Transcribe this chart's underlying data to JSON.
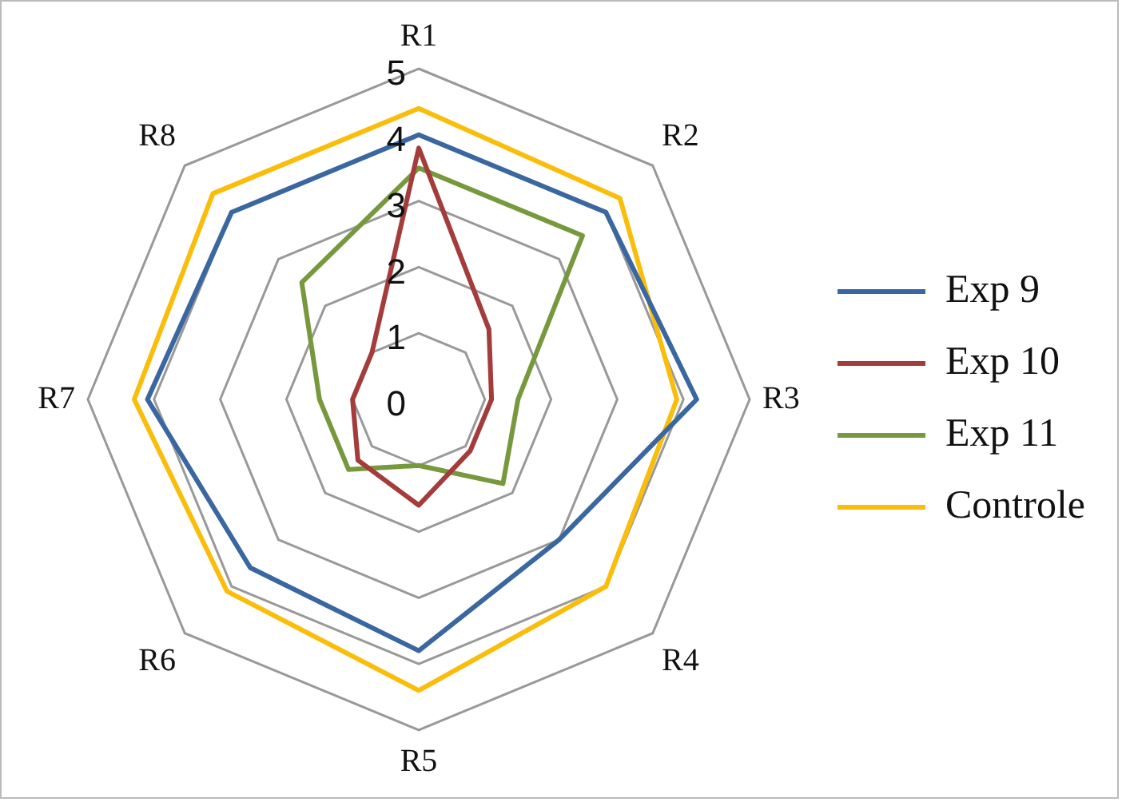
{
  "chart_data": {
    "type": "radar",
    "categories": [
      "R1",
      "R2",
      "R3",
      "R4",
      "R5",
      "R6",
      "R7",
      "R8"
    ],
    "series": [
      {
        "name": "Exp 9",
        "color": "#3a67a0",
        "values": [
          4.0,
          4.0,
          4.2,
          3.0,
          3.8,
          3.6,
          4.1,
          4.0
        ]
      },
      {
        "name": "Exp 10",
        "color": "#a33c3a",
        "values": [
          3.8,
          1.5,
          1.1,
          1.1,
          1.6,
          1.3,
          1.0,
          1.0
        ]
      },
      {
        "name": "Exp 11",
        "color": "#77993d",
        "values": [
          3.5,
          3.5,
          1.5,
          1.8,
          1.0,
          1.5,
          1.5,
          2.5
        ]
      },
      {
        "name": "Controle",
        "color": "#fbbd0b",
        "values": [
          4.4,
          4.3,
          3.9,
          4.0,
          4.4,
          4.1,
          4.3,
          4.4
        ]
      }
    ],
    "ylim": [
      0,
      5
    ],
    "yticks": [
      0,
      1,
      2,
      3,
      4,
      5
    ],
    "grid": true,
    "legend": "right"
  }
}
